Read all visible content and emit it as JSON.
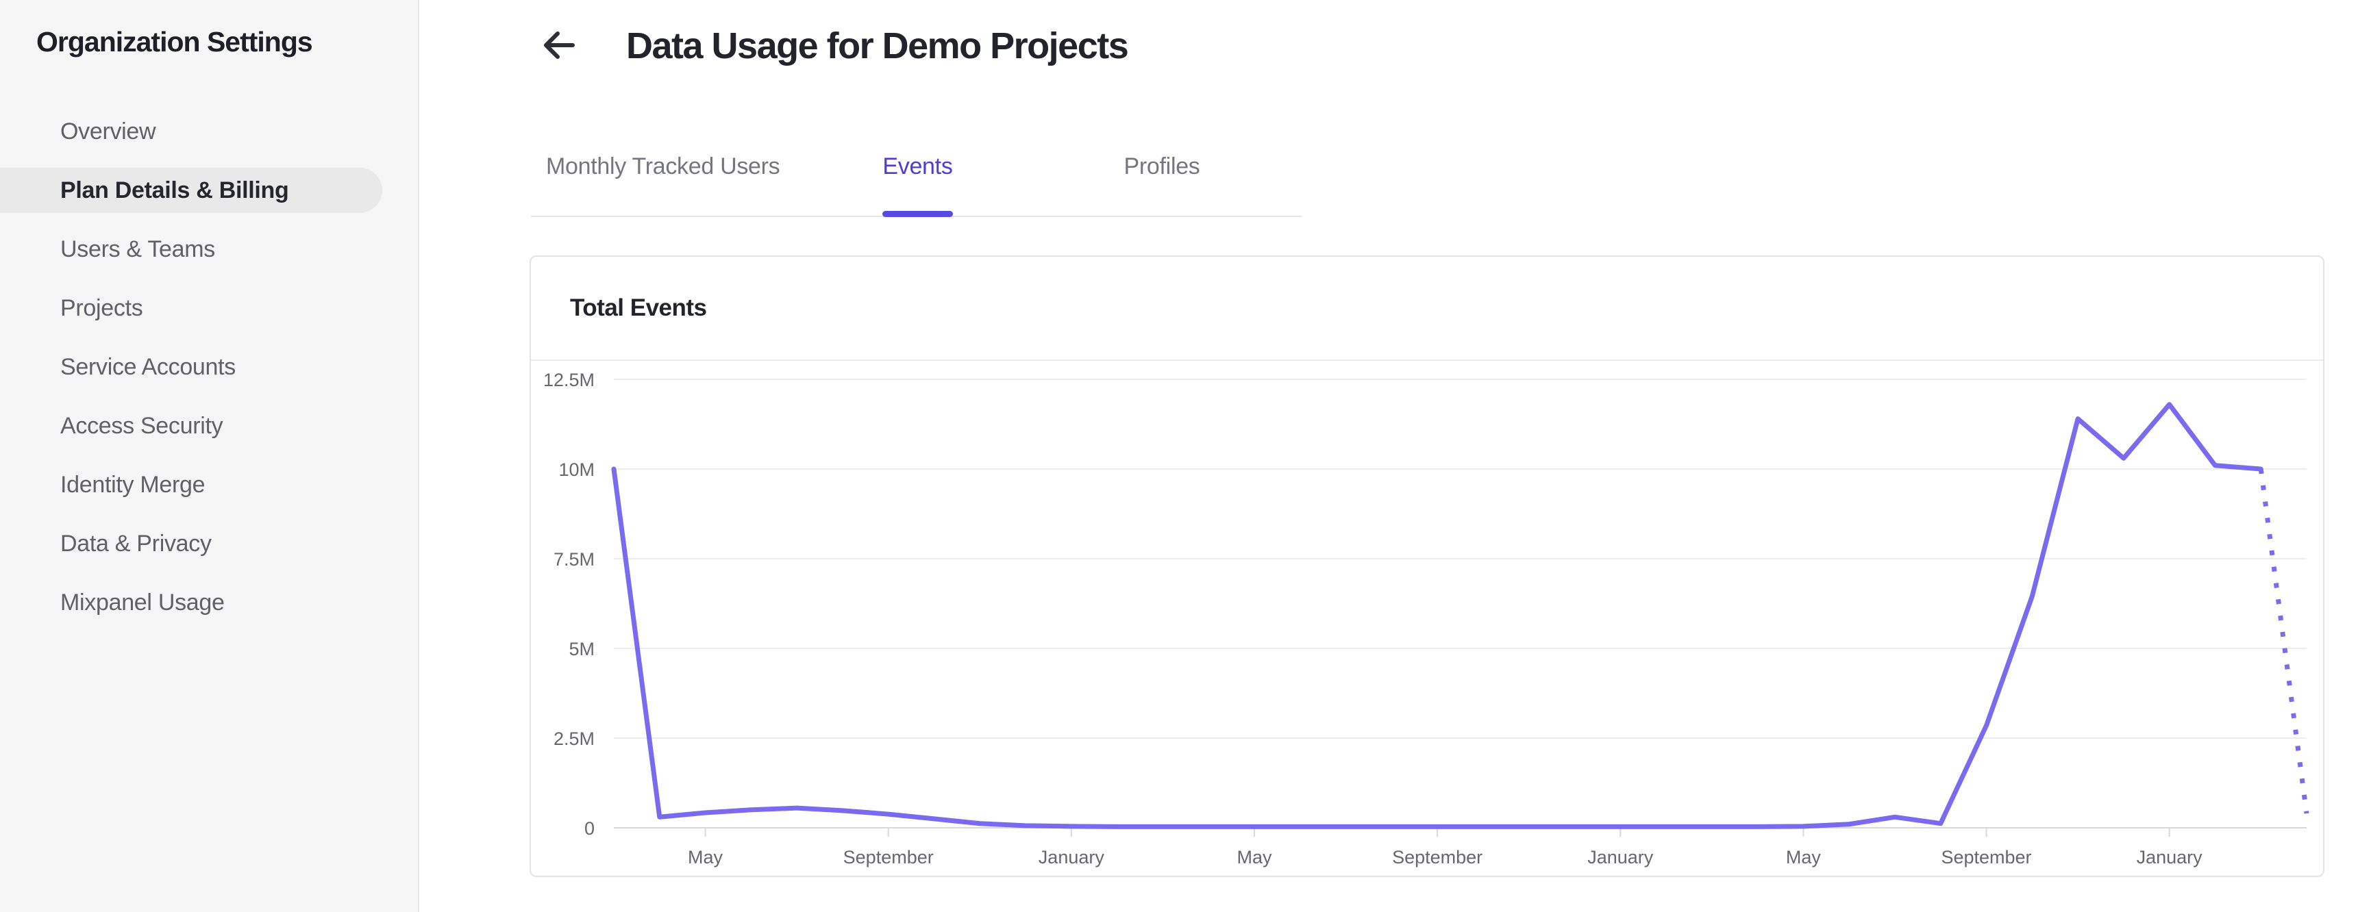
{
  "sidebar": {
    "title": "Organization Settings",
    "items": [
      {
        "label": "Overview",
        "selected": false
      },
      {
        "label": "Plan Details & Billing",
        "selected": true
      },
      {
        "label": "Users & Teams",
        "selected": false
      },
      {
        "label": "Projects",
        "selected": false
      },
      {
        "label": "Service Accounts",
        "selected": false
      },
      {
        "label": "Access Security",
        "selected": false
      },
      {
        "label": "Identity Merge",
        "selected": false
      },
      {
        "label": "Data & Privacy",
        "selected": false
      },
      {
        "label": "Mixpanel Usage",
        "selected": false
      }
    ]
  },
  "header": {
    "back_icon": "left-arrow",
    "title": "Data Usage for Demo Projects"
  },
  "tabs": [
    {
      "label": "Monthly Tracked Users",
      "active": false
    },
    {
      "label": "Events",
      "active": true
    },
    {
      "label": "Profiles",
      "active": false
    }
  ],
  "card": {
    "title": "Total Events"
  },
  "colors": {
    "accent_tab": "#4b3ed8",
    "tab_underline": "#574ae2",
    "chart_line": "#7a6af0",
    "grid_line": "#ededf0",
    "axis_line": "#d9d9dc",
    "axis_text": "#66666e",
    "sidebar_bg": "#f6f6f7",
    "selected_pill_bg": "#e9e9ea"
  },
  "chart_data": {
    "type": "line",
    "title": "Total Events",
    "unit": "events",
    "series_name": "Total Events",
    "num_points": 38,
    "values_millions": [
      10.0,
      0.3,
      0.42,
      0.5,
      0.55,
      0.48,
      0.38,
      0.25,
      0.12,
      0.06,
      0.04,
      0.03,
      0.03,
      0.03,
      0.03,
      0.03,
      0.03,
      0.03,
      0.03,
      0.03,
      0.03,
      0.03,
      0.03,
      0.03,
      0.03,
      0.03,
      0.04,
      0.1,
      0.3,
      0.12,
      2.85,
      6.45,
      11.4,
      10.3,
      11.8,
      10.1,
      10.0,
      0.4
    ],
    "dotted_from_index": 36,
    "x_tick_indices": [
      2,
      6,
      10,
      14,
      18,
      22,
      26,
      30,
      34
    ],
    "x_tick_labels": [
      "May",
      "September",
      "January",
      "May",
      "September",
      "January",
      "May",
      "September",
      "January"
    ],
    "y_tick_values": [
      0,
      2.5,
      5,
      7.5,
      10,
      12.5
    ],
    "y_tick_labels": [
      "0",
      "2.5M",
      "5M",
      "7.5M",
      "10M",
      "12.5M"
    ],
    "ylim": [
      0,
      12.5
    ],
    "grid": "horizontal",
    "legend_position": "none"
  }
}
